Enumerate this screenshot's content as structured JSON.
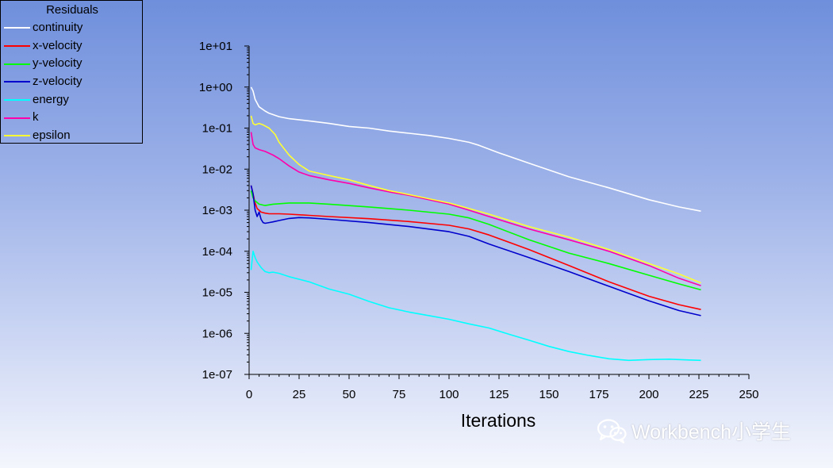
{
  "legend": {
    "title": "Residuals"
  },
  "watermark": {
    "text": "Workbench小学生",
    "icon": "wechat-icon"
  },
  "chart_data": {
    "type": "line",
    "xlabel": "Iterations",
    "ylabel": "",
    "title": "",
    "xlim": [
      0,
      250
    ],
    "ylim": [
      1e-07,
      10
    ],
    "yscale": "log",
    "x_ticks": [
      0,
      25,
      50,
      75,
      100,
      125,
      150,
      175,
      200,
      225,
      250
    ],
    "x_tick_labels": [
      "0",
      "25",
      "50",
      "75",
      "100",
      "125",
      "150",
      "175",
      "200",
      "225",
      "250"
    ],
    "y_ticks": [
      1e-07,
      1e-06,
      1e-05,
      0.0001,
      0.001,
      0.01,
      0.1,
      1,
      10
    ],
    "y_tick_labels": [
      "1e-07",
      "1e-06",
      "1e-05",
      "1e-04",
      "1e-03",
      "1e-02",
      "1e-01",
      "1e+00",
      "1e+01"
    ],
    "grid": false,
    "legend_position": "top-left",
    "series": [
      {
        "name": "continuity",
        "color": "#ffffff",
        "x": [
          1,
          2,
          3,
          5,
          8,
          10,
          15,
          20,
          30,
          40,
          50,
          60,
          70,
          80,
          90,
          100,
          110,
          115,
          125,
          140,
          160,
          180,
          200,
          215,
          226
        ],
        "y": [
          1.0,
          0.8,
          0.5,
          0.33,
          0.26,
          0.23,
          0.19,
          0.17,
          0.15,
          0.13,
          0.11,
          0.1,
          0.085,
          0.075,
          0.066,
          0.056,
          0.045,
          0.038,
          0.025,
          0.014,
          0.0065,
          0.0035,
          0.0018,
          0.0012,
          0.00095
        ]
      },
      {
        "name": "x-velocity",
        "color": "#ff0000",
        "x": [
          1,
          2,
          3,
          4,
          6,
          8,
          10,
          15,
          20,
          30,
          40,
          60,
          80,
          100,
          110,
          120,
          140,
          160,
          180,
          200,
          215,
          226
        ],
        "y": [
          0.004,
          0.0025,
          0.0015,
          0.0011,
          0.0009,
          0.00085,
          0.00082,
          0.00082,
          0.0008,
          0.00075,
          0.0007,
          0.00062,
          0.00053,
          0.00043,
          0.00035,
          0.00025,
          0.00011,
          4.5e-05,
          1.8e-05,
          8e-06,
          5e-06,
          3.8e-06
        ]
      },
      {
        "name": "y-velocity",
        "color": "#00ff00",
        "x": [
          1,
          2,
          3,
          5,
          8,
          12,
          20,
          30,
          40,
          60,
          80,
          100,
          110,
          120,
          140,
          160,
          180,
          200,
          215,
          226
        ],
        "y": [
          0.003,
          0.002,
          0.0017,
          0.0014,
          0.0013,
          0.0014,
          0.0015,
          0.0015,
          0.0014,
          0.0012,
          0.001,
          0.0008,
          0.00065,
          0.00045,
          0.00019,
          9e-05,
          5e-05,
          2.6e-05,
          1.6e-05,
          1.15e-05
        ]
      },
      {
        "name": "z-velocity",
        "color": "#0000cc",
        "x": [
          1,
          2,
          3,
          4,
          5,
          6,
          7,
          8,
          10,
          12,
          15,
          20,
          25,
          30,
          40,
          60,
          80,
          100,
          110,
          120,
          140,
          160,
          180,
          200,
          215,
          226
        ],
        "y": [
          0.004,
          0.0025,
          0.001,
          0.0007,
          0.0009,
          0.0006,
          0.0005,
          0.00048,
          0.0005,
          0.00052,
          0.00056,
          0.00063,
          0.00066,
          0.00065,
          0.0006,
          0.0005,
          0.0004,
          0.0003,
          0.00023,
          0.00015,
          7e-05,
          3.2e-05,
          1.4e-05,
          6.2e-06,
          3.6e-06,
          2.7e-06
        ]
      },
      {
        "name": "energy",
        "color": "#00ffff",
        "x": [
          1,
          2,
          3,
          4,
          6,
          8,
          10,
          12,
          15,
          20,
          30,
          40,
          50,
          60,
          70,
          80,
          90,
          100,
          110,
          120,
          130,
          140,
          150,
          160,
          170,
          180,
          190,
          200,
          210,
          220,
          226
        ],
        "y": [
          3.5e-05,
          0.0001,
          7e-05,
          5.5e-05,
          4e-05,
          3.2e-05,
          3e-05,
          3.1e-05,
          2.9e-05,
          2.4e-05,
          1.8e-05,
          1.2e-05,
          9e-06,
          6e-06,
          4.2e-06,
          3.3e-06,
          2.7e-06,
          2.2e-06,
          1.7e-06,
          1.35e-06,
          9.5e-07,
          6.8e-07,
          4.8e-07,
          3.6e-07,
          2.9e-07,
          2.4e-07,
          2.2e-07,
          2.3e-07,
          2.35e-07,
          2.25e-07,
          2.2e-07
        ]
      },
      {
        "name": "k",
        "color": "#ff00aa",
        "x": [
          1,
          2,
          3,
          5,
          8,
          12,
          15,
          20,
          25,
          30,
          40,
          50,
          60,
          70,
          80,
          90,
          100,
          110,
          120,
          140,
          160,
          180,
          200,
          215,
          226
        ],
        "y": [
          0.08,
          0.04,
          0.033,
          0.03,
          0.027,
          0.022,
          0.018,
          0.012,
          0.0085,
          0.007,
          0.0055,
          0.0045,
          0.0035,
          0.0028,
          0.0023,
          0.0018,
          0.0014,
          0.001,
          0.0007,
          0.00035,
          0.00019,
          0.0001,
          4.5e-05,
          2.2e-05,
          1.45e-05
        ]
      },
      {
        "name": "epsilon",
        "color": "#ffff33",
        "x": [
          1,
          2,
          3,
          5,
          7,
          10,
          13,
          15,
          20,
          25,
          30,
          40,
          50,
          60,
          70,
          80,
          90,
          100,
          110,
          120,
          140,
          160,
          180,
          200,
          215,
          226
        ],
        "y": [
          0.2,
          0.13,
          0.12,
          0.13,
          0.12,
          0.1,
          0.07,
          0.045,
          0.022,
          0.013,
          0.009,
          0.007,
          0.0055,
          0.004,
          0.003,
          0.0024,
          0.0019,
          0.0015,
          0.0011,
          0.0008,
          0.0004,
          0.00022,
          0.00011,
          5e-05,
          2.8e-05,
          1.7e-05
        ]
      }
    ]
  }
}
